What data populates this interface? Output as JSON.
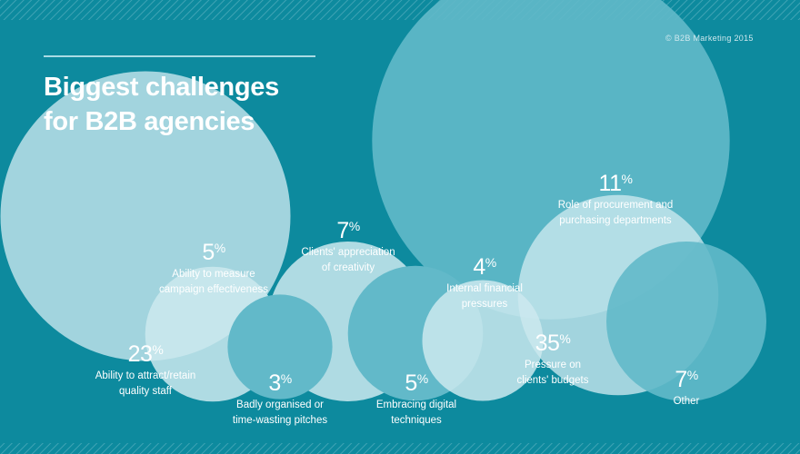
{
  "copyright": "© B2B Marketing 2015",
  "title_line1": "Biggest challenges",
  "title_line2": "for B2B agencies",
  "percent_symbol": "%",
  "chart_data": {
    "type": "bubble",
    "title": "Biggest challenges for B2B agencies",
    "unit": "%",
    "items": [
      {
        "label_line1": "Ability to attract/retain",
        "label_line2": "quality staff",
        "value": 23
      },
      {
        "label_line1": "Ability to measure",
        "label_line2": "campaign effectiveness",
        "value": 5
      },
      {
        "label_line1": "Badly organised or",
        "label_line2": "time-wasting pitches",
        "value": 3
      },
      {
        "label_line1": "Clients' appreciation",
        "label_line2": "of creativity",
        "value": 7
      },
      {
        "label_line1": "Embracing digital",
        "label_line2": "techniques",
        "value": 5
      },
      {
        "label_line1": "Internal financial",
        "label_line2": "pressures",
        "value": 4
      },
      {
        "label_line1": "Pressure on",
        "label_line2": "clients' budgets",
        "value": 35
      },
      {
        "label_line1": "Role of procurement and",
        "label_line2": "purchasing departments",
        "value": 11
      },
      {
        "label_line1": "Other",
        "label_line2": "",
        "value": 7
      }
    ],
    "colors": {
      "background": "#0d8a9e",
      "bubble_dark": "#62b9c9",
      "bubble_light": "#cde9ef"
    }
  }
}
